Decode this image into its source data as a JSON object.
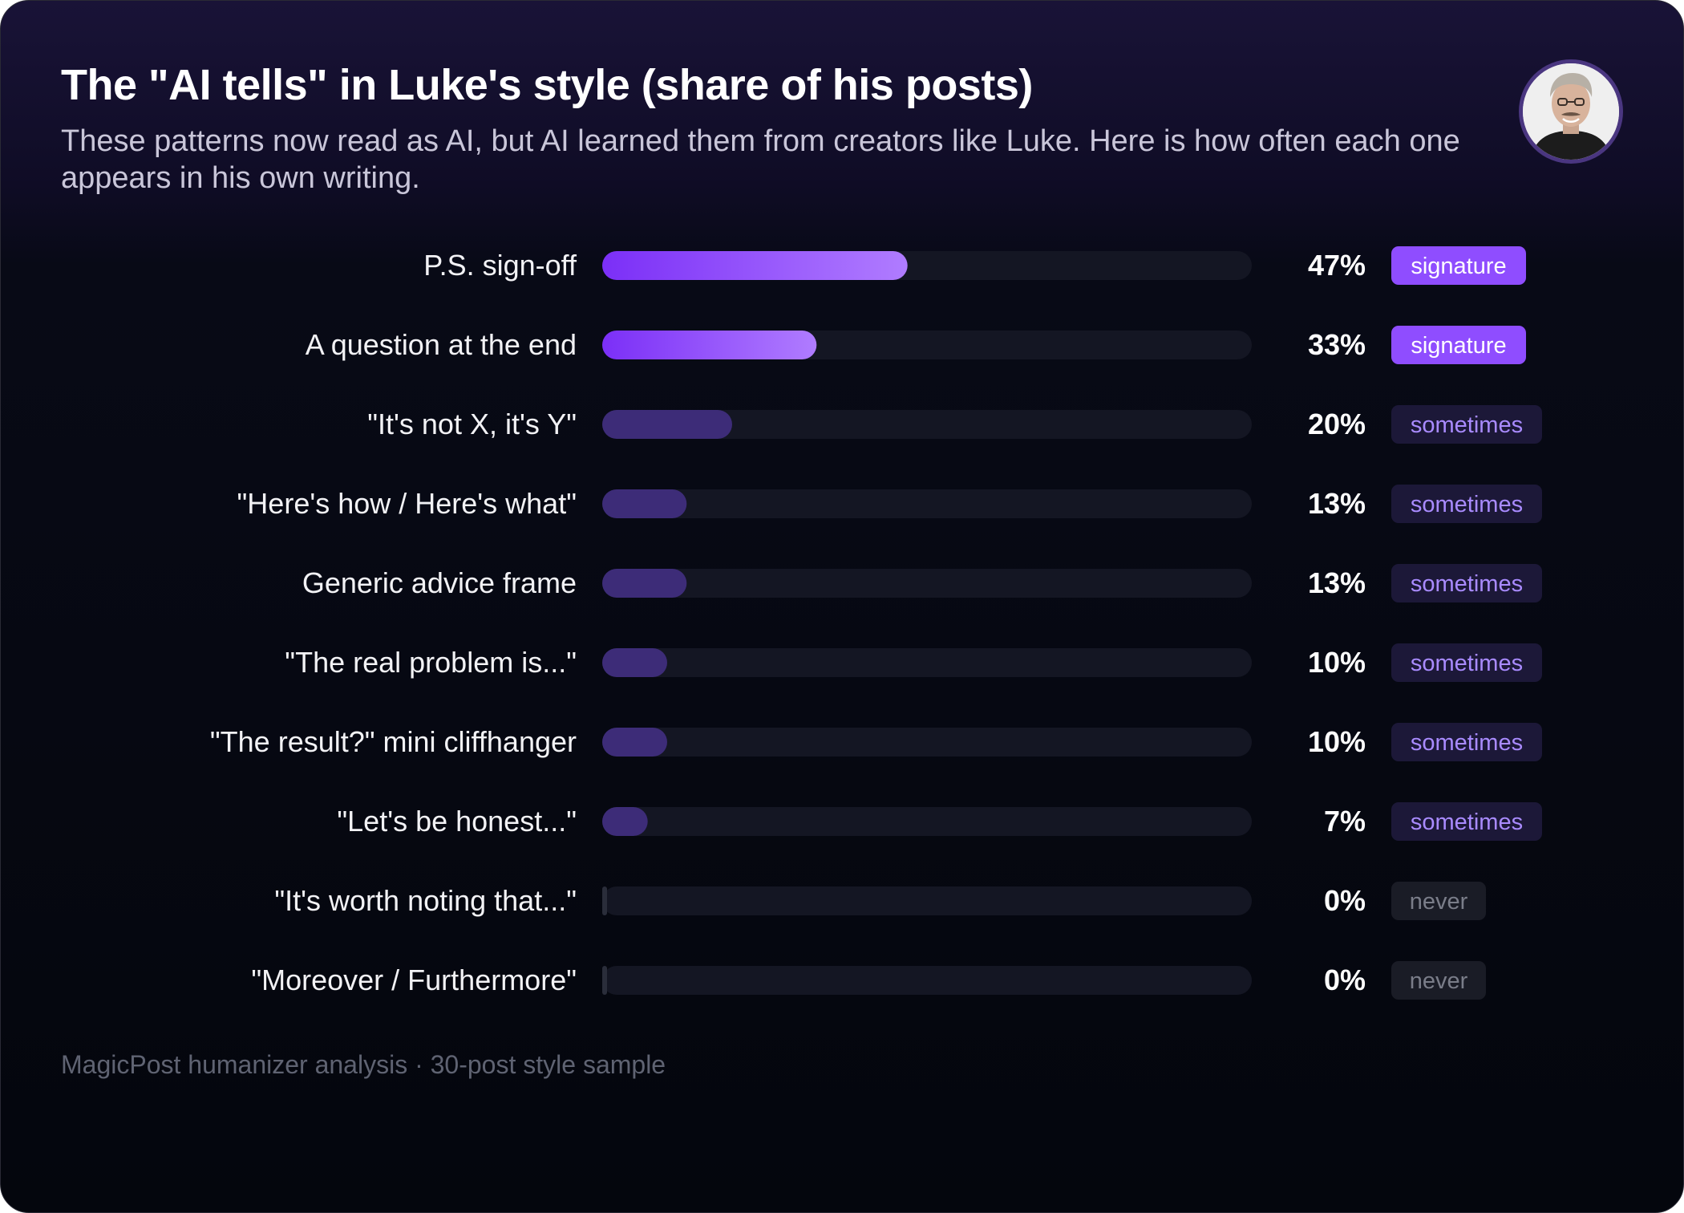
{
  "title": "The \"AI tells\" in Luke's style (share of his posts)",
  "subtitle": "These patterns now read as AI, but AI learned them from creators like Luke. Here is how often each one appears in his own writing.",
  "avatar_icon": "person-portrait-icon",
  "footer": "MagicPost humanizer analysis · 30-post style sample",
  "colors": {
    "background": "#05070e",
    "track": "#141623",
    "signature_bar_start": "#7b2ff7",
    "signature_bar_end": "#b07cff",
    "sometimes_bar": "#3d2c78",
    "never_bar": "#2a2d3a",
    "signature_badge": "#8f4dff",
    "sometimes_badge": "#1c1838",
    "never_badge": "#1a1c26"
  },
  "chart_data": {
    "type": "bar",
    "orientation": "horizontal",
    "categories": [
      "P.S. sign-off",
      "A question at the end",
      "\"It's not X, it's Y\"",
      "\"Here's how / Here's what\"",
      "Generic advice frame",
      "\"The real problem is...\"",
      "\"The result?\" mini cliffhanger",
      "\"Let's be honest...\"",
      "\"It's worth noting that...\"",
      "\"Moreover / Furthermore\""
    ],
    "values": [
      47,
      33,
      20,
      13,
      13,
      10,
      10,
      7,
      0,
      0
    ],
    "value_labels": [
      "47%",
      "33%",
      "20%",
      "13%",
      "13%",
      "10%",
      "10%",
      "7%",
      "0%",
      "0%"
    ],
    "badges": [
      "signature",
      "signature",
      "sometimes",
      "sometimes",
      "sometimes",
      "sometimes",
      "sometimes",
      "sometimes",
      "never",
      "never"
    ],
    "xlim": [
      0,
      100
    ],
    "grid": false,
    "legend": "none"
  }
}
